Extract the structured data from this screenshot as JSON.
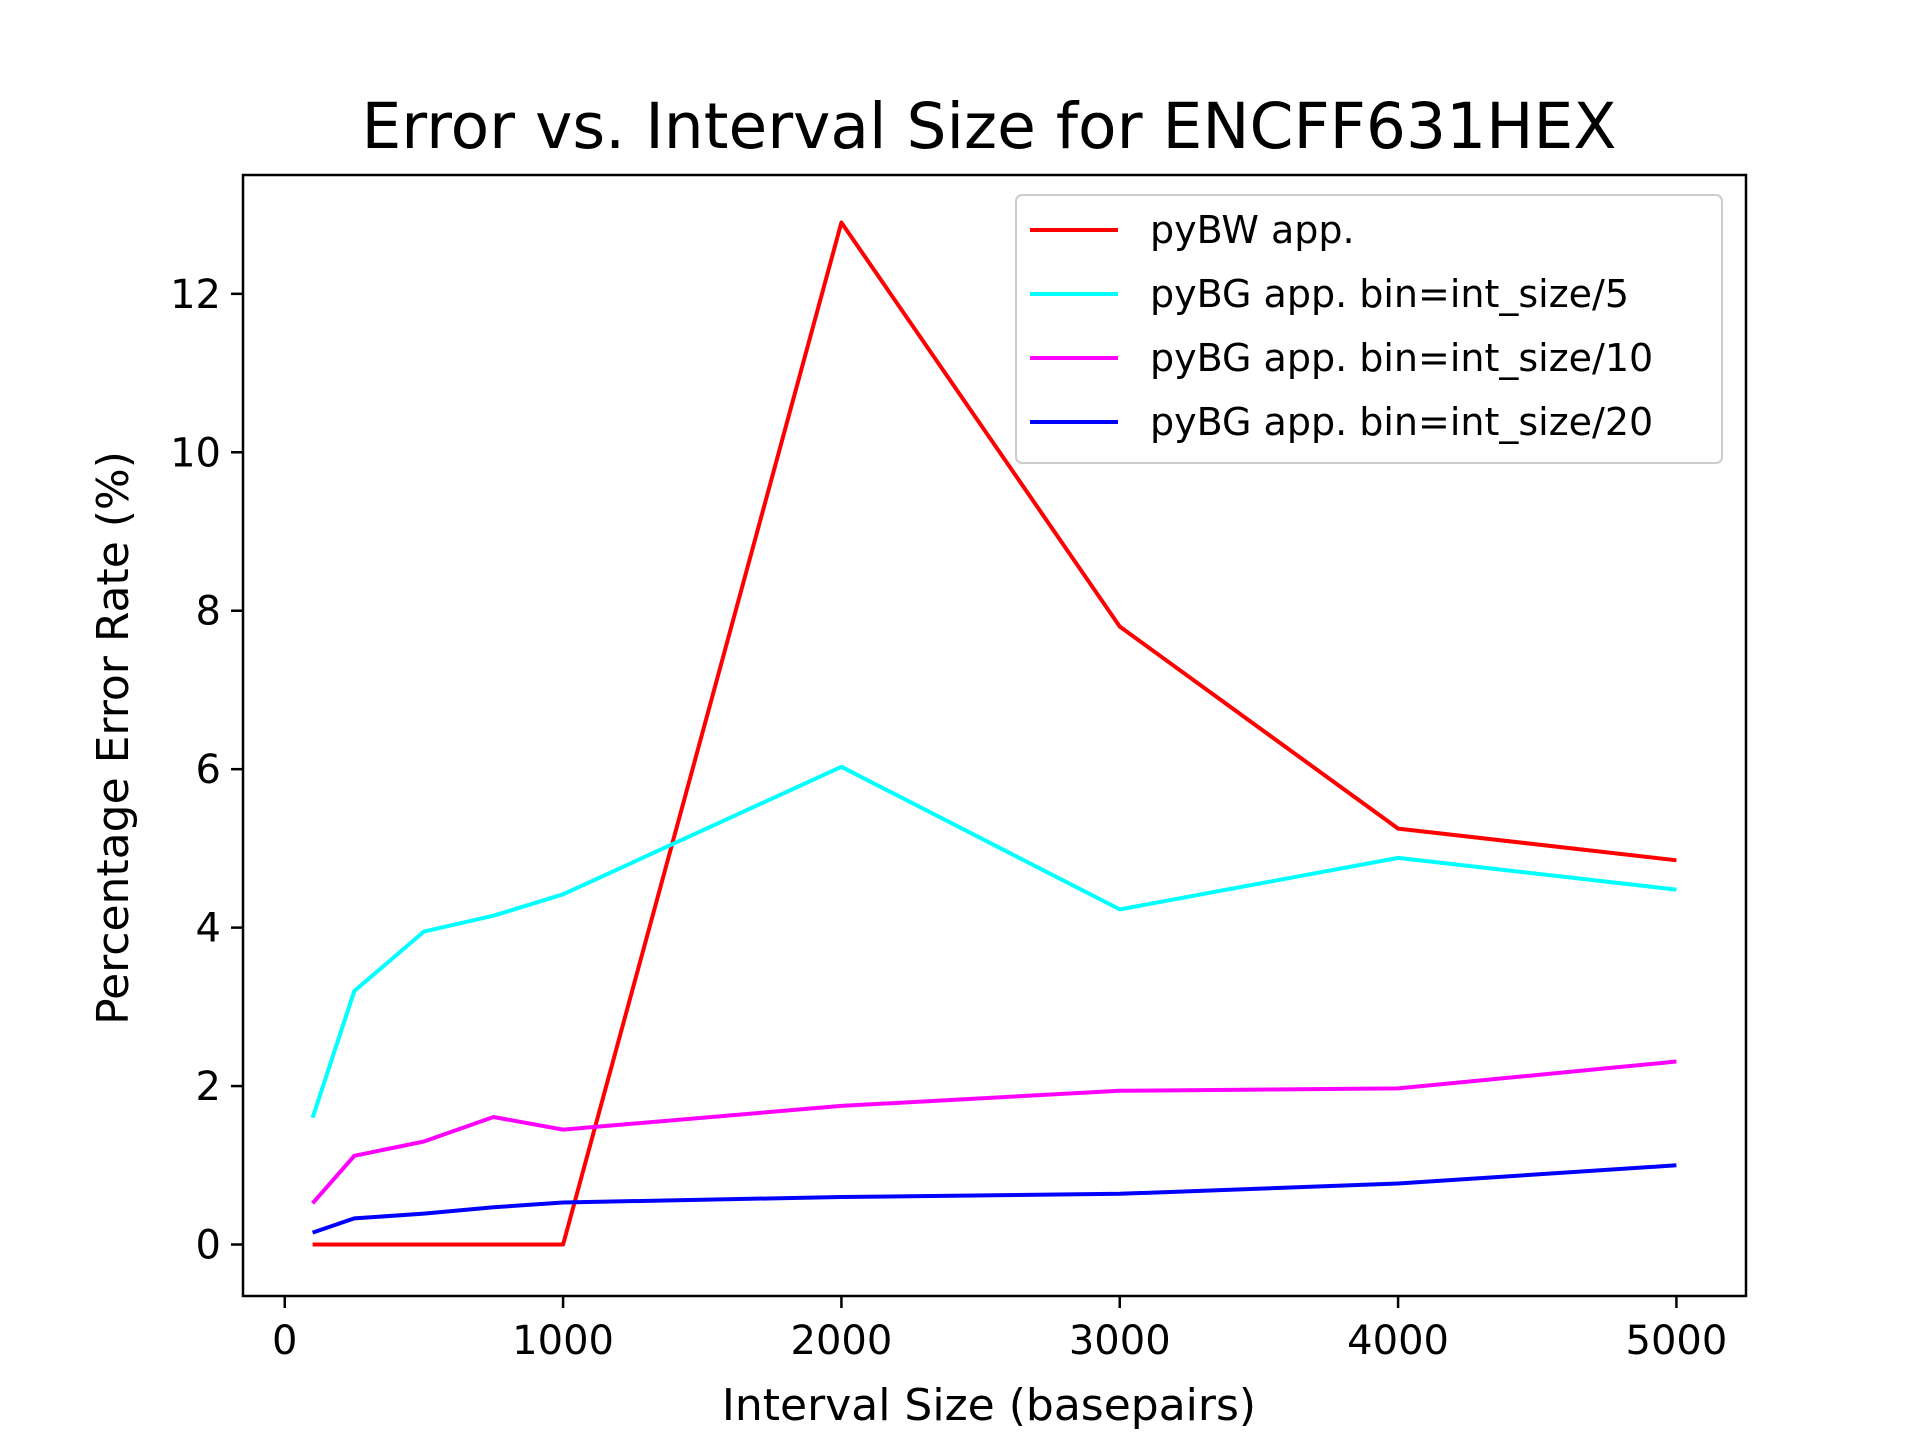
{
  "chart_data": {
    "type": "line",
    "title": "Error vs. Interval Size for ENCFF631HEX",
    "xlabel": "Interval Size (basepairs)",
    "ylabel": "Percentage Error Rate (%)",
    "xlim": [
      -150,
      5250
    ],
    "ylim": [
      -0.65,
      13.5
    ],
    "xticks": [
      0,
      1000,
      2000,
      3000,
      4000,
      5000
    ],
    "yticks": [
      0,
      2,
      4,
      6,
      8,
      10,
      12
    ],
    "grid": false,
    "legend_position": "upper-right",
    "x": [
      100,
      250,
      500,
      750,
      1000,
      2000,
      3000,
      4000,
      5000
    ],
    "series": [
      {
        "name": "pyBW app.",
        "color": "#ff0000",
        "values": [
          0.0,
          0.0,
          0.0,
          0.0,
          0.0,
          12.9,
          7.8,
          5.25,
          4.85
        ]
      },
      {
        "name": "pyBG app. bin=int_size/5",
        "color": "#00ffff",
        "values": [
          1.6,
          3.2,
          3.95,
          4.15,
          4.42,
          6.03,
          4.23,
          4.88,
          4.48
        ]
      },
      {
        "name": "pyBG app. bin=int_size/10",
        "color": "#ff00ff",
        "values": [
          0.52,
          1.12,
          1.3,
          1.61,
          1.45,
          1.75,
          1.94,
          1.97,
          2.31
        ]
      },
      {
        "name": "pyBG app. bin=int_size/20",
        "color": "#0000ff",
        "values": [
          0.15,
          0.33,
          0.39,
          0.47,
          0.53,
          0.6,
          0.64,
          0.77,
          1.0
        ]
      }
    ]
  }
}
